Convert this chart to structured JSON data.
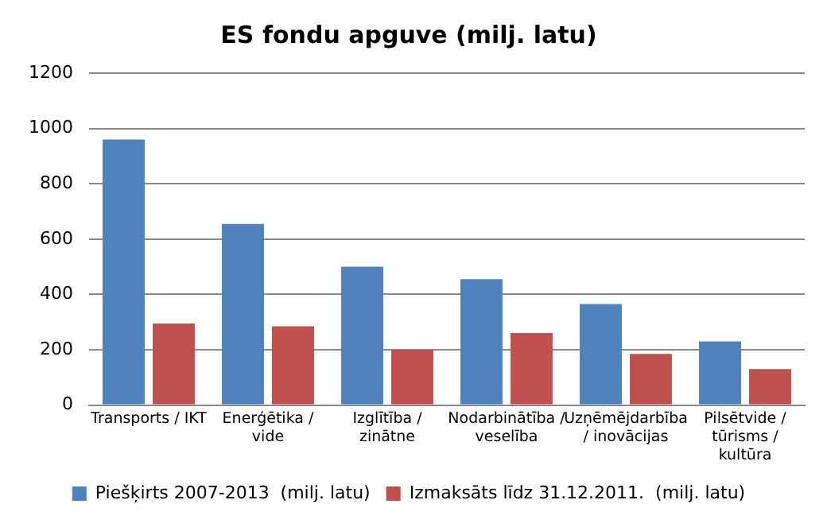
{
  "chart_data": {
    "type": "bar",
    "title": "ES fondu apguve (milj. latu)",
    "categories": [
      "Transports / IKT",
      "Enerģētika / vide",
      "Izglītība / zinātne",
      "Nodarbinātība / veselība",
      "Uzņēmējdarbība / inovācijas",
      "Pilsētvide / tūrisms / kultūra"
    ],
    "series": [
      {
        "name": "Piešķirts 2007-2013  (milj. latu)",
        "color": "#4f81bd",
        "values": [
          960,
          655,
          500,
          455,
          365,
          230
        ]
      },
      {
        "name": "Izmaksāts līdz 31.12.2011.  (milj. latu)",
        "color": "#c0504d",
        "values": [
          295,
          285,
          200,
          260,
          185,
          130
        ]
      }
    ],
    "ylim": [
      0,
      1200
    ],
    "yticks": [
      0,
      200,
      400,
      600,
      800,
      1000,
      1200
    ],
    "grid": "y",
    "legend": "bottom"
  }
}
